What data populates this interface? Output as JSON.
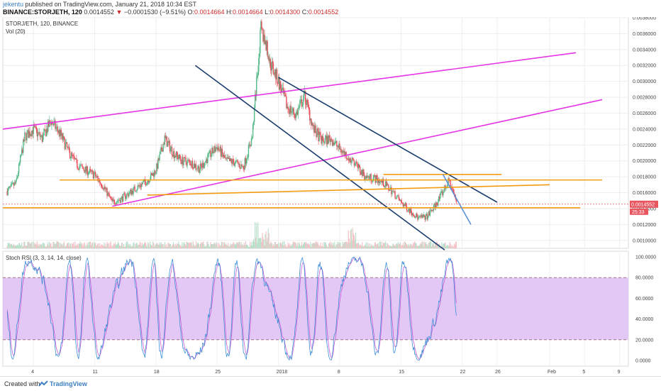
{
  "header": {
    "author": "jekentu",
    "published": "published on TradingView.com, January 21, 2018 10:34 EST",
    "symbol": "BINANCE:STORJETH, 120",
    "last_price": "0.0014552",
    "change_arrow": "▼",
    "change": "−0.0001530 (−9.51%)",
    "ohlc": {
      "o_label": "O:",
      "o": "0.0014664",
      "h_label": "H:",
      "h": "0.0014664",
      "l_label": "L:",
      "l": "0.0014300",
      "c_label": "C:",
      "c": "0.0014552"
    }
  },
  "main_pane": {
    "title": "STORJ/ETH, 120, BINANCE",
    "vol_label": "Vol (20)",
    "price_badge": "0.0014552",
    "countdown_badge": "25:33"
  },
  "rsi_pane": {
    "title": "Stoch RSI (3, 3, 14, 14, close)"
  },
  "footer": {
    "created": "Created with",
    "brand": "TradingView"
  },
  "colors": {
    "up_candle": "#53b987",
    "down_candle": "#eb4d5c",
    "magenta_line": "#e535e5",
    "orange_line": "#f39c12",
    "navy_line": "#1b3e6d",
    "blue_line": "#5b8fd6",
    "rsi_band_fill": "#e3c8f6",
    "rsi_k": "#3d8fd6",
    "rsi_d": "#c65ad6",
    "price_badge": "#e8555f"
  },
  "chart_data": {
    "type": "candlestick",
    "price_axis": {
      "ylim": [
        0.0009,
        0.0038
      ],
      "ticks": [
        "0.0038000",
        "0.0036000",
        "0.0034000",
        "0.0032000",
        "0.0030000",
        "0.0028000",
        "0.0026000",
        "0.0024000",
        "0.0022000",
        "0.0020000",
        "0.0018000",
        "0.0016000",
        "0.0014000",
        "0.0012000",
        "0.0010000"
      ]
    },
    "rsi_axis": {
      "ylim": [
        0,
        100
      ],
      "ticks": [
        "100.0000",
        "80.0000",
        "60.0000",
        "40.0000",
        "20.0000",
        "0.0000"
      ],
      "band": [
        20,
        80
      ]
    },
    "x_axis": {
      "ticks": [
        "4",
        "11",
        "18",
        "25",
        "2018",
        "8",
        "15",
        "22",
        "26",
        "Feb",
        "5",
        "9"
      ],
      "tick_days": [
        4,
        11,
        18,
        25,
        32,
        39,
        46,
        53,
        57,
        63,
        67,
        71
      ],
      "xlim_days": [
        0.5,
        72.0
      ]
    },
    "last_price": 0.0014552,
    "price_path": [
      [
        1,
        0.00162
      ],
      [
        2,
        0.00172
      ],
      [
        3,
        0.0023
      ],
      [
        4,
        0.0024
      ],
      [
        5,
        0.00228
      ],
      [
        6,
        0.0025
      ],
      [
        7,
        0.00235
      ],
      [
        8,
        0.00212
      ],
      [
        9,
        0.00195
      ],
      [
        10,
        0.00188
      ],
      [
        11,
        0.00182
      ],
      [
        12,
        0.00168
      ],
      [
        13,
        0.00148
      ],
      [
        14,
        0.00152
      ],
      [
        15,
        0.0016
      ],
      [
        16,
        0.00168
      ],
      [
        17,
        0.00175
      ],
      [
        18,
        0.00188
      ],
      [
        19,
        0.00228
      ],
      [
        20,
        0.0021
      ],
      [
        21,
        0.002
      ],
      [
        22,
        0.00198
      ],
      [
        23,
        0.0019
      ],
      [
        24,
        0.00205
      ],
      [
        25,
        0.00218
      ],
      [
        26,
        0.002
      ],
      [
        27,
        0.00198
      ],
      [
        28,
        0.00192
      ],
      [
        29,
        0.0023
      ],
      [
        29.5,
        0.003
      ],
      [
        30,
        0.00365
      ],
      [
        30.5,
        0.0035
      ],
      [
        31,
        0.00325
      ],
      [
        32,
        0.003
      ],
      [
        33,
        0.00268
      ],
      [
        34,
        0.00258
      ],
      [
        35,
        0.00282
      ],
      [
        36,
        0.0024
      ],
      [
        37,
        0.00225
      ],
      [
        38,
        0.00228
      ],
      [
        39,
        0.00215
      ],
      [
        40,
        0.00205
      ],
      [
        41,
        0.00192
      ],
      [
        42,
        0.0018
      ],
      [
        43,
        0.00178
      ],
      [
        44,
        0.00172
      ],
      [
        45,
        0.00162
      ],
      [
        46,
        0.00148
      ],
      [
        47,
        0.00138
      ],
      [
        48,
        0.00128
      ],
      [
        49,
        0.0013
      ],
      [
        50,
        0.00145
      ],
      [
        51,
        0.00165
      ],
      [
        51.5,
        0.00175
      ],
      [
        52,
        0.0016
      ],
      [
        52.4,
        0.00146
      ]
    ],
    "drawings": [
      {
        "kind": "trendline",
        "color": "magenta",
        "from": [
          0.5,
          0.0024
        ],
        "to": [
          66,
          0.00336
        ]
      },
      {
        "kind": "trendline",
        "color": "magenta",
        "from": [
          13,
          0.00143
        ],
        "to": [
          69,
          0.00277
        ]
      },
      {
        "kind": "trendline",
        "color": "navy",
        "from": [
          22.5,
          0.0032
        ],
        "to": [
          51,
          0.00088
        ]
      },
      {
        "kind": "trendline",
        "color": "navy",
        "from": [
          32,
          0.00305
        ],
        "to": [
          57,
          0.00148
        ]
      },
      {
        "kind": "hline",
        "color": "orange",
        "from": [
          7,
          0.00176
        ],
        "to": [
          69,
          0.00176
        ]
      },
      {
        "kind": "hline",
        "color": "orange",
        "from": [
          0.5,
          0.00141
        ],
        "to": [
          66.5,
          0.00141
        ]
      },
      {
        "kind": "trendline",
        "color": "orange",
        "from": [
          17,
          0.00157
        ],
        "to": [
          63,
          0.0017
        ]
      },
      {
        "kind": "hline",
        "color": "orange",
        "from": [
          44,
          0.00183
        ],
        "to": [
          57.5,
          0.00183
        ]
      },
      {
        "kind": "trendline",
        "color": "blue",
        "from": [
          50.8,
          0.00183
        ],
        "to": [
          54,
          0.0012
        ]
      }
    ]
  }
}
